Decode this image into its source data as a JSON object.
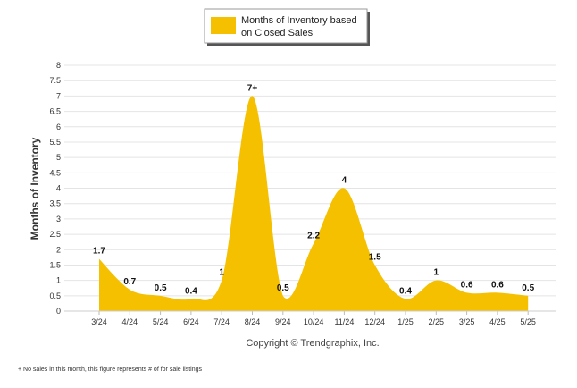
{
  "chart_data": {
    "type": "area",
    "title": "",
    "xlabel": "",
    "ylabel": "Months of Inventory",
    "ylim": [
      0,
      8
    ],
    "yticks": [
      "0",
      "0.5",
      "1",
      "1.5",
      "2",
      "2.5",
      "3",
      "3.5",
      "4",
      "4.5",
      "5",
      "5.5",
      "6",
      "6.5",
      "7",
      "7.5",
      "8"
    ],
    "categories": [
      "3/24",
      "4/24",
      "5/24",
      "6/24",
      "7/24",
      "8/24",
      "9/24",
      "10/24",
      "11/24",
      "12/24",
      "1/25",
      "2/25",
      "3/25",
      "4/25",
      "5/25"
    ],
    "series": [
      {
        "name": "Months of Inventory based on Closed Sales",
        "values": [
          1.7,
          0.7,
          0.5,
          0.4,
          1,
          7,
          0.5,
          2.2,
          4,
          1.5,
          0.4,
          1,
          0.6,
          0.6,
          0.5
        ],
        "labels": [
          "1.7",
          "0.7",
          "0.5",
          "0.4",
          "1",
          "7+",
          "0.5",
          "2.2",
          "4",
          "1.5",
          "0.4",
          "1",
          "0.6",
          "0.6",
          "0.5"
        ],
        "color": "#F5C000"
      }
    ],
    "legend": {
      "position": "top-center",
      "label_line1": "Months of Inventory based",
      "label_line2": "on Closed Sales"
    },
    "grid": true,
    "copyright": "Copyright © Trendgraphix, Inc.",
    "footnote": "+ No sales in this month, this figure represents # of for sale listings"
  }
}
